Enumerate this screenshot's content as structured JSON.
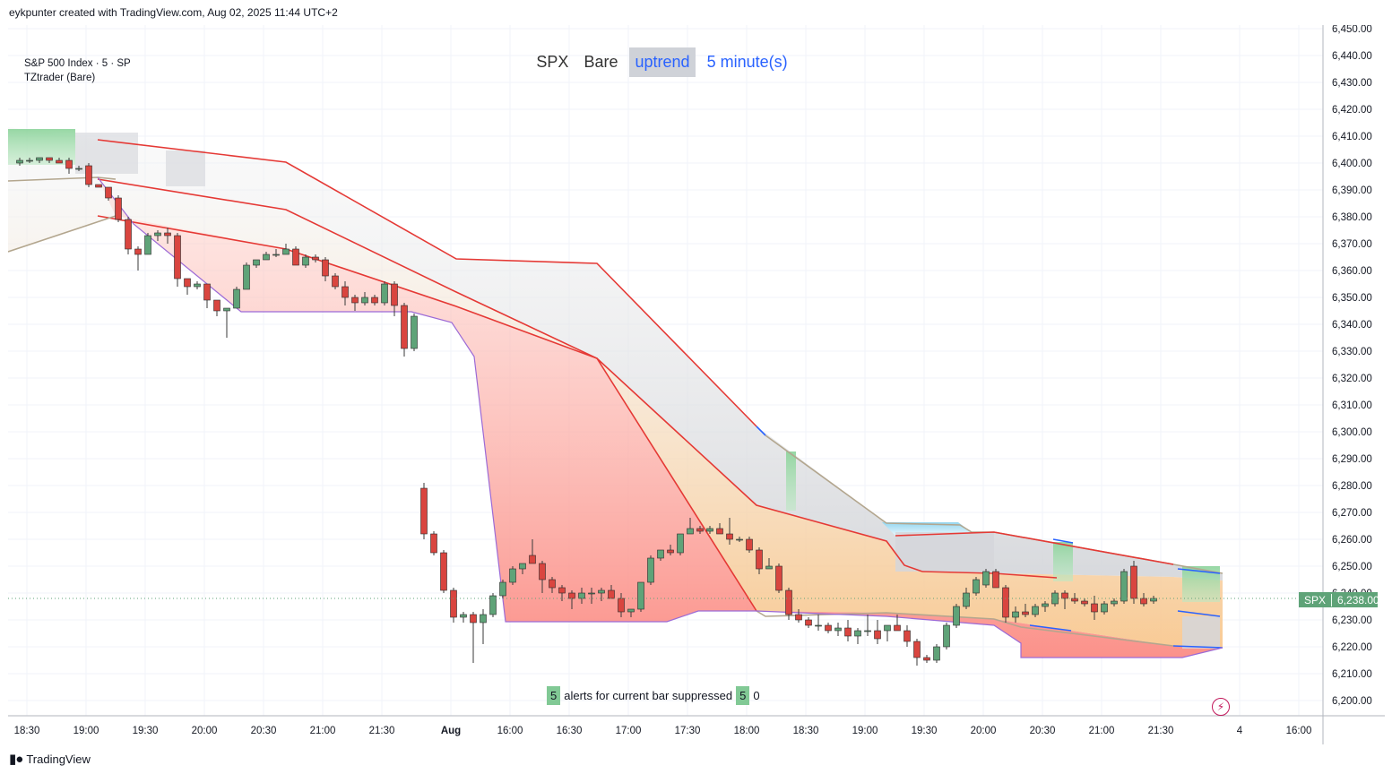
{
  "header": {
    "credit": "eykpunter created with TradingView.com, Aug 02, 2025 11:44 UTC+2"
  },
  "legend": {
    "line1": "S&P 500 Index · 5 · SP",
    "line2": "TZtrader (Bare)"
  },
  "title_bar": {
    "symbol": "SPX",
    "mode": "Bare",
    "trend": "uptrend",
    "interval": "5 minute(s)"
  },
  "alerts": {
    "count": "5",
    "text": "alerts for current bar suppressed",
    "count2": "5",
    "extra": "0"
  },
  "price_tag": {
    "symbol": "SPX",
    "value": "6,238.00"
  },
  "footer": {
    "brand": "TradingView",
    "logo": "tradingview-logo"
  },
  "colors": {
    "up": "#5fa378",
    "down": "#d9453f",
    "red_line": "#e53935",
    "tan_line": "#b3a68e",
    "blue_line": "#2962ff",
    "purple_line": "#9c6ad6"
  },
  "chart_data": {
    "type": "candlestick",
    "y_axis": {
      "min": 6200,
      "max": 6450,
      "ticks": [
        "6,200.00",
        "6,210.00",
        "6,220.00",
        "6,230.00",
        "6,240.00",
        "6,250.00",
        "6,260.00",
        "6,270.00",
        "6,280.00",
        "6,290.00",
        "6,300.00",
        "6,310.00",
        "6,320.00",
        "6,330.00",
        "6,340.00",
        "6,350.00",
        "6,360.00",
        "6,370.00",
        "6,380.00",
        "6,390.00",
        "6,400.00",
        "6,410.00",
        "6,420.00",
        "6,430.00",
        "6,440.00",
        "6,450.00"
      ]
    },
    "x_axis": {
      "tick_labels": [
        "18:30",
        "19:00",
        "19:30",
        "20:00",
        "20:30",
        "21:00",
        "21:30",
        "Aug",
        "16:00",
        "16:30",
        "17:00",
        "17:30",
        "18:00",
        "18:30",
        "19:00",
        "19:30",
        "20:00",
        "20:30",
        "21:00",
        "21:30",
        "4",
        "16:00"
      ]
    },
    "last_price": 6238.0,
    "candles": [
      [
        6400,
        6402,
        6399,
        6401
      ],
      [
        6401,
        6402,
        6400,
        6401
      ],
      [
        6401,
        6402,
        6400,
        6402
      ],
      [
        6402,
        6402,
        6400,
        6401
      ],
      [
        6401,
        6402,
        6400,
        6400
      ],
      [
        6401,
        6402,
        6396,
        6398
      ],
      [
        6398,
        6399,
        6397,
        6398
      ],
      [
        6399,
        6400,
        6391,
        6392
      ],
      [
        6392,
        6392,
        6391,
        6391
      ],
      [
        6391,
        6391,
        6386,
        6387
      ],
      [
        6387,
        6388,
        6378,
        6379
      ],
      [
        6379,
        6380,
        6366,
        6368
      ],
      [
        6368,
        6369,
        6360,
        6366
      ],
      [
        6366,
        6374,
        6366,
        6373
      ],
      [
        6373,
        6375,
        6371,
        6374
      ],
      [
        6374,
        6376,
        6370,
        6373
      ],
      [
        6373,
        6374,
        6354,
        6357
      ],
      [
        6357,
        6357,
        6351,
        6354
      ],
      [
        6354,
        6356,
        6353,
        6355
      ],
      [
        6355,
        6355,
        6346,
        6349
      ],
      [
        6349,
        6349,
        6343,
        6345
      ],
      [
        6345,
        6346,
        6335,
        6346
      ],
      [
        6346,
        6354,
        6346,
        6353
      ],
      [
        6353,
        6363,
        6353,
        6362
      ],
      [
        6362,
        6364,
        6361,
        6364
      ],
      [
        6364,
        6367,
        6364,
        6366
      ],
      [
        6366,
        6368,
        6365,
        6366
      ],
      [
        6366,
        6370,
        6366,
        6368
      ],
      [
        6368,
        6369,
        6362,
        6362
      ],
      [
        6362,
        6366,
        6361,
        6365
      ],
      [
        6365,
        6366,
        6363,
        6364
      ],
      [
        6364,
        6365,
        6356,
        6358
      ],
      [
        6358,
        6359,
        6353,
        6354
      ],
      [
        6354,
        6356,
        6347,
        6350
      ],
      [
        6350,
        6351,
        6345,
        6348
      ],
      [
        6348,
        6352,
        6347,
        6350
      ],
      [
        6350,
        6351,
        6347,
        6348
      ],
      [
        6348,
        6356,
        6347,
        6355
      ],
      [
        6355,
        6356,
        6343,
        6347
      ],
      [
        6347,
        6348,
        6328,
        6331
      ],
      [
        6331,
        6344,
        6330,
        6343
      ],
      [
        6279,
        6281,
        6260,
        6262
      ],
      [
        6262,
        6263,
        6254,
        6255
      ],
      [
        6255,
        6256,
        6240,
        6241
      ],
      [
        6241,
        6242,
        6229,
        6231
      ],
      [
        6231,
        6233,
        6229,
        6232
      ],
      [
        6232,
        6233,
        6214,
        6229
      ],
      [
        6229,
        6234,
        6221,
        6232
      ],
      [
        6232,
        6240,
        6231,
        6239
      ],
      [
        6239,
        6245,
        6238,
        6244
      ],
      [
        6244,
        6250,
        6243,
        6249
      ],
      [
        6249,
        6251,
        6247,
        6251
      ],
      [
        6254,
        6260,
        6251,
        6251
      ],
      [
        6251,
        6252,
        6240,
        6245
      ],
      [
        6245,
        6246,
        6240,
        6242
      ],
      [
        6242,
        6243,
        6237,
        6240
      ],
      [
        6240,
        6241,
        6234,
        6238
      ],
      [
        6238,
        6242,
        6236,
        6240
      ],
      [
        6240,
        6242,
        6236,
        6240
      ],
      [
        6240,
        6242,
        6237,
        6241
      ],
      [
        6241,
        6243,
        6238,
        6238
      ],
      [
        6238,
        6240,
        6231,
        6233
      ],
      [
        6233,
        6234,
        6231,
        6234
      ],
      [
        6234,
        6244,
        6233,
        6244
      ],
      [
        6244,
        6254,
        6243,
        6253
      ],
      [
        6253,
        6256,
        6252,
        6256
      ],
      [
        6256,
        6258,
        6254,
        6255
      ],
      [
        6255,
        6262,
        6254,
        6262
      ],
      [
        6262,
        6268,
        6262,
        6264
      ],
      [
        6264,
        6265,
        6262,
        6263
      ],
      [
        6263,
        6265,
        6262,
        6264
      ],
      [
        6264,
        6266,
        6262,
        6262
      ],
      [
        6262,
        6268,
        6258,
        6260
      ],
      [
        6260,
        6261,
        6259,
        6260
      ],
      [
        6260,
        6261,
        6255,
        6256
      ],
      [
        6256,
        6257,
        6247,
        6249
      ],
      [
        6249,
        6253,
        6249,
        6250
      ],
      [
        6250,
        6251,
        6240,
        6241
      ],
      [
        6241,
        6242,
        6230,
        6232
      ],
      [
        6232,
        6234,
        6229,
        6230
      ],
      [
        6230,
        6231,
        6227,
        6228
      ],
      [
        6228,
        6232,
        6226,
        6228
      ],
      [
        6228,
        6229,
        6225,
        6226
      ],
      [
        6226,
        6229,
        6224,
        6227
      ],
      [
        6227,
        6230,
        6222,
        6224
      ],
      [
        6224,
        6227,
        6221,
        6226
      ],
      [
        6226,
        6232,
        6224,
        6226
      ],
      [
        6226,
        6230,
        6221,
        6223
      ],
      [
        6226,
        6228,
        6222,
        6228
      ],
      [
        6228,
        6232,
        6226,
        6226
      ],
      [
        6226,
        6228,
        6220,
        6222
      ],
      [
        6222,
        6223,
        6213,
        6216
      ],
      [
        6216,
        6217,
        6214,
        6215
      ],
      [
        6215,
        6221,
        6214,
        6220
      ],
      [
        6220,
        6229,
        6219,
        6228
      ],
      [
        6228,
        6236,
        6227,
        6235
      ],
      [
        6235,
        6242,
        6234,
        6240
      ],
      [
        6240,
        6246,
        6239,
        6245
      ],
      [
        6243,
        6249,
        6242,
        6248
      ],
      [
        6248,
        6249,
        6242,
        6242
      ],
      [
        6242,
        6243,
        6229,
        6231
      ],
      [
        6231,
        6235,
        6229,
        6233
      ],
      [
        6233,
        6236,
        6231,
        6232
      ],
      [
        6232,
        6236,
        6231,
        6235
      ],
      [
        6235,
        6237,
        6233,
        6236
      ],
      [
        6236,
        6241,
        6235,
        6240
      ],
      [
        6240,
        6241,
        6234,
        6238
      ],
      [
        6238,
        6240,
        6236,
        6237
      ],
      [
        6237,
        6238,
        6235,
        6236
      ],
      [
        6236,
        6239,
        6230,
        6233
      ],
      [
        6233,
        6237,
        6232,
        6236
      ],
      [
        6236,
        6238,
        6235,
        6237
      ],
      [
        6237,
        6249,
        6236,
        6248
      ],
      [
        6250,
        6252,
        6236,
        6238
      ],
      [
        6238,
        6240,
        6235,
        6236
      ],
      [
        6237,
        6239,
        6236,
        6238
      ]
    ]
  }
}
